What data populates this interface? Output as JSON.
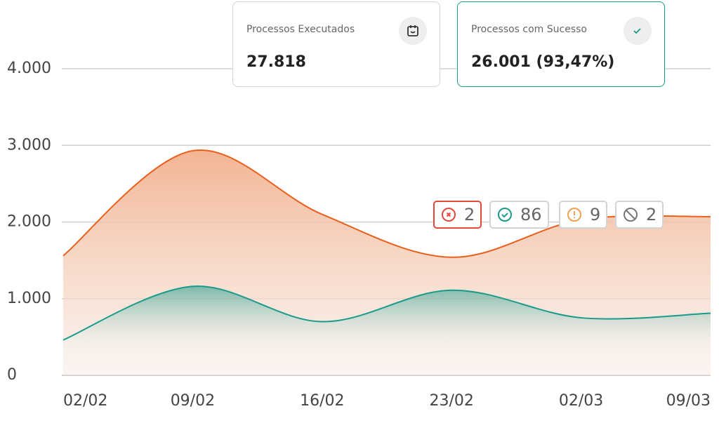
{
  "chart_data": {
    "type": "area",
    "categories": [
      "02/02",
      "09/02",
      "16/02",
      "23/02",
      "02/03",
      "09/03"
    ],
    "series": [
      {
        "name": null,
        "color": "#e8601c",
        "values": [
          1560,
          2930,
          2100,
          1540,
          2030,
          2070
        ]
      },
      {
        "name": null,
        "color": "#1a9a8a",
        "values": [
          460,
          1160,
          700,
          1110,
          750,
          810
        ]
      }
    ],
    "ylim": [
      0,
      4000
    ],
    "yticks": [
      0,
      {
        "value": 1000,
        "label": "1.000"
      },
      {
        "value": 2000,
        "label": "2.000"
      },
      {
        "value": 3000,
        "label": "3.000"
      },
      {
        "value": 4000,
        "label": "4.000"
      }
    ],
    "grid": true
  },
  "cards": [
    {
      "label": "Processos Executados",
      "value": "27.818"
    },
    {
      "label": "Processos com Sucesso",
      "value": "26.001 (93,47%)"
    }
  ],
  "badges": [
    {
      "status": "error",
      "count": 2,
      "color": "#e5473b"
    },
    {
      "status": "success",
      "count": 86,
      "color": "#1a9a8a"
    },
    {
      "status": "warning",
      "count": 9,
      "color": "#f0a050"
    },
    {
      "status": "disabled",
      "count": 2,
      "color": "#777777"
    }
  ]
}
